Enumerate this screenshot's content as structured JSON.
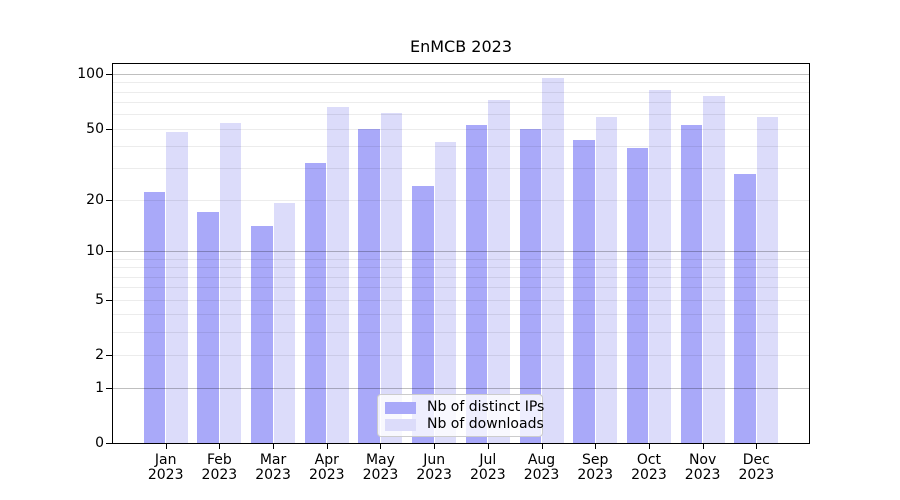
{
  "chart_data": {
    "type": "bar",
    "title": "EnMCB 2023",
    "categories": [
      "Jan",
      "Feb",
      "Mar",
      "Apr",
      "May",
      "Jun",
      "Jul",
      "Aug",
      "Sep",
      "Oct",
      "Nov",
      "Dec"
    ],
    "x_tick_year": "2023",
    "series": [
      {
        "name": "Nb of distinct IPs",
        "color": "#a9a9f9",
        "values": [
          22,
          17,
          14,
          32,
          50,
          24,
          52,
          50,
          43,
          39,
          52,
          28
        ]
      },
      {
        "name": "Nb of downloads",
        "color": "#dcdcfa",
        "values": [
          48,
          54,
          19,
          66,
          61,
          42,
          72,
          95,
          58,
          82,
          76,
          58
        ]
      }
    ],
    "yscale": "log10(1+v)",
    "ylim": [
      0,
      110
    ],
    "ytick_labels": [
      0,
      1,
      2,
      5,
      10,
      20,
      50,
      100
    ],
    "major_grid_values": [
      1,
      10,
      100
    ],
    "minor_grid_values": [
      2,
      3,
      4,
      5,
      6,
      7,
      8,
      9,
      20,
      30,
      40,
      50,
      60,
      70,
      80,
      90
    ],
    "grid": "both, drawn over bars",
    "legend_position": "inside lower-center"
  }
}
